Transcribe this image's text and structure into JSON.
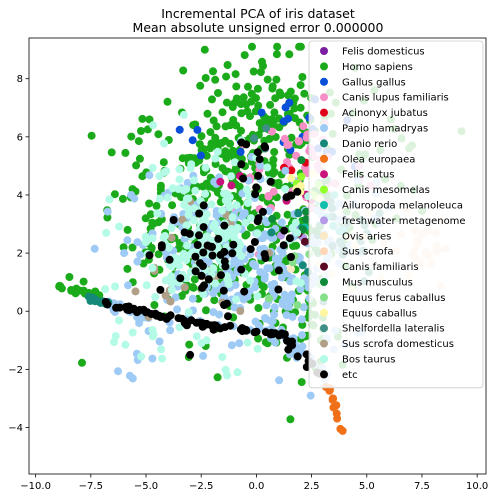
{
  "chart_data": {
    "type": "scatter",
    "title": "Incremental PCA of iris dataset",
    "subtitle": "Mean absolute unsigned error 0.000000",
    "xlabel": "",
    "ylabel": "",
    "xlim": [
      -10.3,
      10.4
    ],
    "ylim": [
      -5.6,
      9.4
    ],
    "x_ticks": [
      -10.0,
      -7.5,
      -5.0,
      -2.5,
      0.0,
      2.5,
      5.0,
      7.5,
      10.0
    ],
    "x_tick_labels": [
      "−10.0",
      "−7.5",
      "−5.0",
      "−2.5",
      "0.0",
      "2.5",
      "5.0",
      "7.5",
      "10.0"
    ],
    "y_ticks": [
      -4,
      -2,
      0,
      2,
      4,
      6,
      8
    ],
    "y_tick_labels": [
      "−4",
      "−2",
      "0",
      "2",
      "4",
      "6",
      "8"
    ],
    "grid": false,
    "legend_position": "top-right",
    "series": [
      {
        "name": "Felis domesticus",
        "color": "#7b1fa2",
        "regions": []
      },
      {
        "name": "Homo sapiens",
        "color": "#1aaa1a",
        "regions": [
          {
            "cx": -1.2,
            "cy": 3.5,
            "sx": 1.8,
            "sy": 2.2,
            "n": 260
          },
          {
            "cx": 0.5,
            "cy": 6.5,
            "sx": 1.6,
            "sy": 1.2,
            "n": 120
          },
          {
            "cx": -4.5,
            "cy": 2.8,
            "sx": 1.5,
            "sy": 1.8,
            "n": 70
          },
          {
            "cx": 2.5,
            "cy": 2.0,
            "sx": 1.2,
            "sy": 1.5,
            "n": 60
          },
          {
            "cx": 2.0,
            "cy": -0.5,
            "sx": 0.8,
            "sy": 0.8,
            "n": 25
          },
          {
            "cx": 5.5,
            "cy": 5.0,
            "sx": 1.2,
            "sy": 1.5,
            "n": 25
          },
          {
            "line": [
              [
                -9.0,
                0.85
              ],
              [
                -7.2,
                0.55
              ]
            ],
            "n": 20,
            "jitter": 0.06
          }
        ]
      },
      {
        "name": "Gallus gallus",
        "color": "#0a4fd8",
        "regions": [
          {
            "cx": 2.0,
            "cy": 5.8,
            "sx": 1.3,
            "sy": 0.9,
            "n": 18
          },
          {
            "cx": -2.8,
            "cy": 5.9,
            "sx": 0.4,
            "sy": 0.3,
            "n": 4
          }
        ]
      },
      {
        "name": "Canis lupus familiaris",
        "color": "#f78fc6",
        "regions": [
          {
            "cx": 2.6,
            "cy": 5.0,
            "sx": 1.2,
            "sy": 1.1,
            "n": 40
          },
          {
            "cx": 0.3,
            "cy": 4.8,
            "sx": 1.0,
            "sy": 1.0,
            "n": 15
          }
        ]
      },
      {
        "name": "Acinonyx jubatus",
        "color": "#e0001a",
        "regions": [
          {
            "cx": 1.5,
            "cy": 4.8,
            "sx": 0.5,
            "sy": 0.4,
            "n": 3
          }
        ]
      },
      {
        "name": "Papio hamadryas",
        "color": "#9ecbf5",
        "regions": [
          {
            "cx": -1.5,
            "cy": 1.8,
            "sx": 2.0,
            "sy": 1.5,
            "n": 220
          },
          {
            "cx": 1.8,
            "cy": 0.5,
            "sx": 1.3,
            "sy": 1.3,
            "n": 60
          },
          {
            "line": [
              [
                -6.8,
                0.3
              ],
              [
                -4.0,
                -0.6
              ]
            ],
            "n": 22,
            "jitter": 0.08
          },
          {
            "line": [
              [
                1.0,
                -0.6
              ],
              [
                3.2,
                -2.2
              ]
            ],
            "n": 20,
            "jitter": 0.1
          },
          {
            "cx": 3.8,
            "cy": 2.8,
            "sx": 1.0,
            "sy": 1.0,
            "n": 30
          },
          {
            "cx": -5.5,
            "cy": -1.8,
            "sx": 0.5,
            "sy": 0.3,
            "n": 6
          }
        ]
      },
      {
        "name": "Danio rerio",
        "color": "#16887a",
        "regions": [
          {
            "cx": 3.5,
            "cy": 3.0,
            "sx": 1.0,
            "sy": 1.2,
            "n": 30
          },
          {
            "line": [
              [
                -7.6,
                0.45
              ],
              [
                -6.6,
                0.25
              ]
            ],
            "n": 14,
            "jitter": 0.04
          }
        ]
      },
      {
        "name": "Olea europaea",
        "color": "#f07018",
        "regions": [
          {
            "line": [
              [
                3.3,
                -2.6
              ],
              [
                3.9,
                -4.2
              ]
            ],
            "n": 14,
            "jitter": 0.05
          }
        ]
      },
      {
        "name": "Felis catus",
        "color": "#c8147a",
        "regions": [
          {
            "cx": -1.0,
            "cy": 4.6,
            "sx": 0.3,
            "sy": 0.3,
            "n": 3
          },
          {
            "cx": 2.0,
            "cy": 4.0,
            "sx": 0.5,
            "sy": 0.5,
            "n": 4
          }
        ]
      },
      {
        "name": "Canis mesomelas",
        "color": "#90ff2a",
        "regions": [
          {
            "cx": 2.6,
            "cy": 3.8,
            "sx": 0.5,
            "sy": 0.5,
            "n": 5
          }
        ]
      },
      {
        "name": "Ailuropoda melanoleuca",
        "color": "#12bfae",
        "regions": [
          {
            "cx": 3.0,
            "cy": 3.3,
            "sx": 0.5,
            "sy": 0.6,
            "n": 8
          }
        ]
      },
      {
        "name": "freshwater metagenome",
        "color": "#b49ae8",
        "regions": [
          {
            "cx": 1.5,
            "cy": 2.7,
            "sx": 0.4,
            "sy": 0.4,
            "n": 3
          }
        ]
      },
      {
        "name": "Ovis aries",
        "color": "#fbe9c4",
        "regions": [
          {
            "cx": 4.5,
            "cy": 2.5,
            "sx": 1.0,
            "sy": 1.0,
            "n": 10
          }
        ]
      },
      {
        "name": "Sus scrofa",
        "color": "#ffd6b8",
        "regions": [
          {
            "cx": 7.5,
            "cy": 2.3,
            "sx": 0.8,
            "sy": 0.6,
            "n": 25
          }
        ]
      },
      {
        "name": "Canis familiaris",
        "color": "#5a0a22",
        "regions": [
          {
            "cx": 1.8,
            "cy": 2.2,
            "sx": 0.3,
            "sy": 0.3,
            "n": 2
          }
        ]
      },
      {
        "name": "Mus musculus",
        "color": "#0d8a3a",
        "regions": [
          {
            "cx": 2.5,
            "cy": 3.0,
            "sx": 0.8,
            "sy": 0.8,
            "n": 10
          }
        ]
      },
      {
        "name": "Equus ferus caballus",
        "color": "#86e08a",
        "regions": [
          {
            "cx": 2.0,
            "cy": 1.0,
            "sx": 0.6,
            "sy": 0.6,
            "n": 6
          }
        ]
      },
      {
        "name": "Equus caballus",
        "color": "#fff7a0",
        "regions": [
          {
            "cx": 2.3,
            "cy": 4.3,
            "sx": 0.5,
            "sy": 0.4,
            "n": 6
          }
        ]
      },
      {
        "name": "Shelfordella lateralis",
        "color": "#3f8f88",
        "regions": [
          {
            "cx": 0.0,
            "cy": 5.5,
            "sx": 0.4,
            "sy": 0.4,
            "n": 3
          }
        ]
      },
      {
        "name": "Sus scrofa domesticus",
        "color": "#b0a088",
        "regions": [
          {
            "cx": -2.8,
            "cy": 1.8,
            "sx": 1.5,
            "sy": 1.0,
            "n": 18
          },
          {
            "cx": -4.5,
            "cy": 0.8,
            "sx": 0.6,
            "sy": 0.4,
            "n": 4
          }
        ]
      },
      {
        "name": "Bos taurus",
        "color": "#b3fbe6",
        "regions": [
          {
            "cx": -2.6,
            "cy": 2.6,
            "sx": 1.7,
            "sy": 1.4,
            "n": 180
          },
          {
            "cx": -5.2,
            "cy": -1.2,
            "sx": 0.6,
            "sy": 0.4,
            "n": 10
          },
          {
            "cx": -1.3,
            "cy": -1.6,
            "sx": 0.8,
            "sy": 0.5,
            "n": 6
          }
        ]
      },
      {
        "name": "etc",
        "color": "#000000",
        "regions": [
          {
            "line": [
              [
                -6.8,
                0.28
              ],
              [
                -3.8,
                -0.25
              ]
            ],
            "n": 28,
            "jitter": 0.05
          },
          {
            "line": [
              [
                -3.8,
                -0.25
              ],
              [
                -1.0,
                -0.6
              ]
            ],
            "n": 18,
            "jitter": 0.05
          },
          {
            "line": [
              [
                -1.0,
                -0.6
              ],
              [
                1.2,
                -0.8
              ]
            ],
            "n": 15,
            "jitter": 0.05
          },
          {
            "line": [
              [
                1.0,
                -0.8
              ],
              [
                3.0,
                -2.3
              ]
            ],
            "n": 18,
            "jitter": 0.08
          },
          {
            "cx": -2.2,
            "cy": 1.8,
            "sx": 1.5,
            "sy": 1.1,
            "n": 55
          },
          {
            "cx": 0.0,
            "cy": 4.8,
            "sx": 0.4,
            "sy": 0.8,
            "n": 12
          },
          {
            "cx": 1.2,
            "cy": 2.5,
            "sx": 0.6,
            "sy": 1.0,
            "n": 10
          }
        ]
      }
    ]
  }
}
